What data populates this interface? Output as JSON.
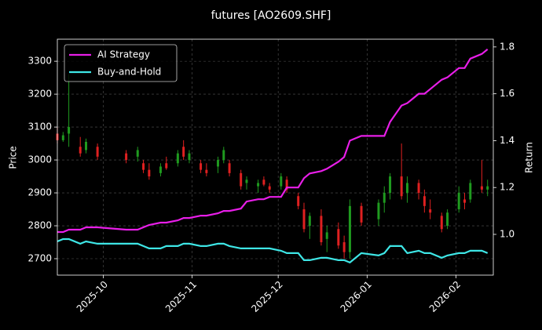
{
  "chart_data": {
    "type": "candlestick",
    "title": "futures [AO2609.SHF]",
    "ylabel": "Price",
    "y2label": "Return",
    "x": [
      "2025-09-15",
      "2025-09-17",
      "2025-09-19",
      "2025-09-23",
      "2025-09-25",
      "2025-09-29",
      "2025-10-09",
      "2025-10-13",
      "2025-10-15",
      "2025-10-17",
      "2025-10-21",
      "2025-10-23",
      "2025-10-27",
      "2025-10-29",
      "2025-10-31",
      "2025-11-04",
      "2025-11-06",
      "2025-11-10",
      "2025-11-12",
      "2025-11-14",
      "2025-11-18",
      "2025-11-20",
      "2025-11-24",
      "2025-11-26",
      "2025-11-28",
      "2025-12-02",
      "2025-12-04",
      "2025-12-08",
      "2025-12-10",
      "2025-12-12",
      "2025-12-16",
      "2025-12-18",
      "2025-12-22",
      "2025-12-24",
      "2025-12-26",
      "2025-12-30",
      "2026-01-05",
      "2026-01-07",
      "2026-01-09",
      "2026-01-13",
      "2026-01-15",
      "2026-01-19",
      "2026-01-21",
      "2026-01-23",
      "2026-01-27",
      "2026-01-29",
      "2026-02-02",
      "2026-02-04",
      "2026-02-06",
      "2026-02-10",
      "2026-02-12"
    ],
    "open": [
      3080,
      3060,
      3080,
      3040,
      3030,
      3040,
      3020,
      3010,
      2990,
      2970,
      2960,
      2990,
      2990,
      3040,
      3000,
      2990,
      2970,
      2980,
      3000,
      2990,
      2960,
      2930,
      2920,
      2940,
      2920,
      2920,
      2940,
      2890,
      2850,
      2800,
      2830,
      2760,
      2790,
      2750,
      2720,
      2860,
      2820,
      2870,
      2900,
      2950,
      2900,
      2930,
      2890,
      2850,
      2830,
      2800,
      2850,
      2880,
      2880,
      2920,
      2910
    ],
    "high": [
      3100,
      3085,
      3260,
      3070,
      3065,
      3050,
      3030,
      3040,
      3000,
      2990,
      2990,
      3010,
      3030,
      3060,
      3030,
      3000,
      2990,
      3010,
      3040,
      3000,
      2970,
      2950,
      2940,
      2950,
      2930,
      2960,
      2950,
      2900,
      2870,
      2840,
      2850,
      2800,
      2810,
      2770,
      2880,
      2870,
      2880,
      2920,
      2960,
      3050,
      2950,
      2940,
      2910,
      2880,
      2840,
      2850,
      2920,
      2900,
      2940,
      3000,
      2940
    ],
    "low": [
      3050,
      3055,
      3040,
      3010,
      3020,
      3000,
      2990,
      2995,
      2960,
      2940,
      2950,
      2970,
      2980,
      3000,
      2990,
      2960,
      2950,
      2960,
      2990,
      2950,
      2910,
      2910,
      2900,
      2920,
      2900,
      2910,
      2900,
      2850,
      2780,
      2760,
      2740,
      2720,
      2730,
      2700,
      2700,
      2800,
      2800,
      2840,
      2880,
      2880,
      2870,
      2880,
      2840,
      2820,
      2780,
      2790,
      2840,
      2850,
      2870,
      2900,
      2890
    ],
    "close": [
      3060,
      3075,
      3100,
      3020,
      3055,
      3010,
      3000,
      3030,
      2970,
      2950,
      2980,
      2975,
      3020,
      3010,
      3020,
      2970,
      2960,
      3000,
      3030,
      2960,
      2920,
      2940,
      2930,
      2925,
      2910,
      2950,
      2910,
      2860,
      2790,
      2830,
      2750,
      2780,
      2740,
      2720,
      2860,
      2810,
      2870,
      2900,
      2950,
      2890,
      2930,
      2900,
      2860,
      2840,
      2790,
      2840,
      2900,
      2870,
      2930,
      2910,
      2920
    ],
    "up_color": "#1f9a1f",
    "down_color": "#e02020",
    "series": [
      {
        "name": "AI Strategy",
        "color": "#e81ee8",
        "axis": "y2",
        "values": [
          1.01,
          1.01,
          1.02,
          1.02,
          1.03,
          1.03,
          1.02,
          1.02,
          1.03,
          1.04,
          1.05,
          1.05,
          1.06,
          1.07,
          1.07,
          1.08,
          1.08,
          1.09,
          1.1,
          1.1,
          1.11,
          1.14,
          1.15,
          1.15,
          1.16,
          1.16,
          1.2,
          1.2,
          1.24,
          1.26,
          1.27,
          1.28,
          1.31,
          1.33,
          1.4,
          1.42,
          1.42,
          1.42,
          1.48,
          1.55,
          1.56,
          1.6,
          1.6,
          1.62,
          1.66,
          1.67,
          1.71,
          1.71,
          1.75,
          1.77,
          1.79
        ]
      },
      {
        "name": "Buy-and-Hold",
        "color": "#3ee6e6",
        "axis": "y2",
        "values": [
          0.97,
          0.98,
          0.98,
          0.96,
          0.97,
          0.96,
          0.96,
          0.96,
          0.95,
          0.94,
          0.94,
          0.95,
          0.95,
          0.96,
          0.96,
          0.95,
          0.95,
          0.96,
          0.96,
          0.95,
          0.94,
          0.94,
          0.94,
          0.94,
          0.94,
          0.93,
          0.92,
          0.92,
          0.89,
          0.89,
          0.9,
          0.9,
          0.89,
          0.89,
          0.88,
          0.92,
          0.91,
          0.92,
          0.95,
          0.95,
          0.92,
          0.93,
          0.92,
          0.92,
          0.9,
          0.91,
          0.92,
          0.92,
          0.93,
          0.93,
          0.92
        ]
      }
    ],
    "xlim": [
      "2025-09-15",
      "2026-02-14"
    ],
    "xticks": [
      {
        "value": "2025-10-01",
        "label": "2025-10"
      },
      {
        "value": "2025-11-01",
        "label": "2025-11"
      },
      {
        "value": "2025-12-01",
        "label": "2025-12"
      },
      {
        "value": "2026-01-01",
        "label": "2026-01"
      },
      {
        "value": "2026-02-01",
        "label": "2026-02"
      }
    ],
    "ylim": [
      2650,
      3367
    ],
    "yticks": [
      2700,
      2800,
      2900,
      3000,
      3100,
      3200,
      3300
    ],
    "y2lim": [
      0.826,
      1.833
    ],
    "y2ticks": [
      {
        "value": 1,
        "label": "1.0"
      },
      1.2,
      1.4,
      1.6,
      1.8
    ],
    "grid": true,
    "legend": "upper left"
  }
}
